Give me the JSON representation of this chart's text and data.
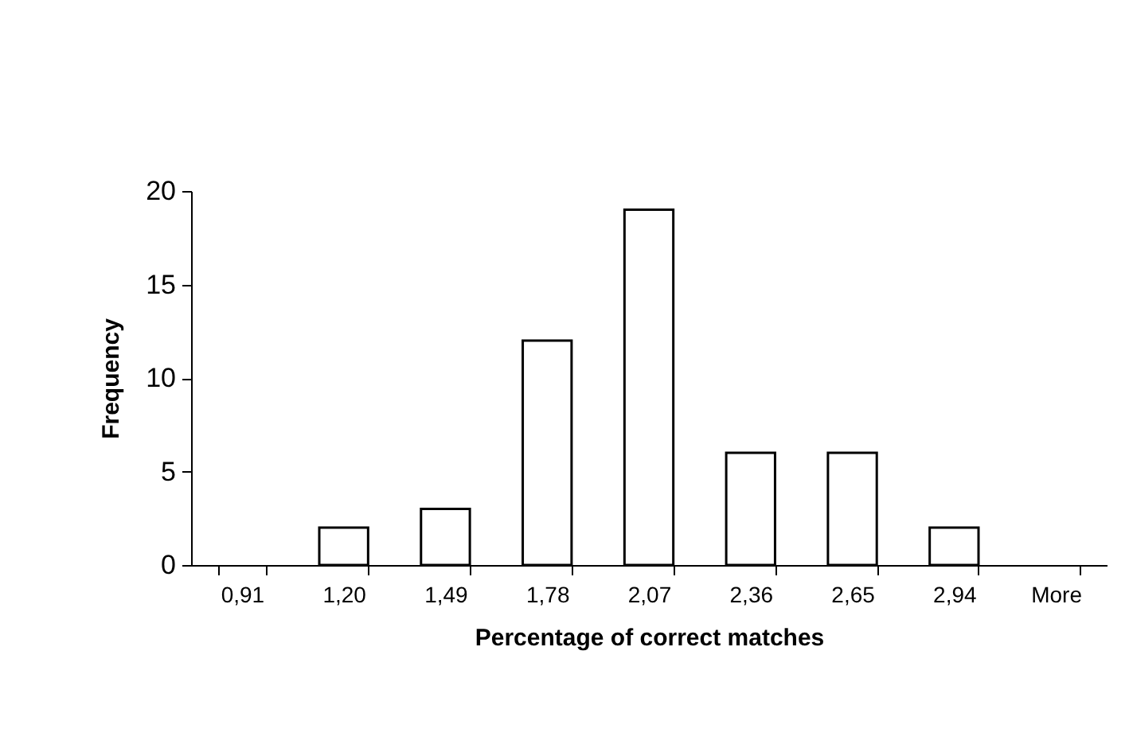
{
  "chart_data": {
    "type": "bar",
    "xlabel": "Percentage of correct matches",
    "ylabel": "Frequency",
    "categories": [
      "0,91",
      "1,20",
      "1,49",
      "1,78",
      "2,07",
      "2,36",
      "2,65",
      "2,94",
      "More"
    ],
    "values": [
      0,
      2,
      3,
      12,
      19,
      6,
      6,
      2,
      0
    ],
    "color": "#ffffff",
    "ylim": [
      0,
      20
    ],
    "yticks": [
      0,
      5,
      10,
      15,
      20
    ],
    "grid": false
  }
}
